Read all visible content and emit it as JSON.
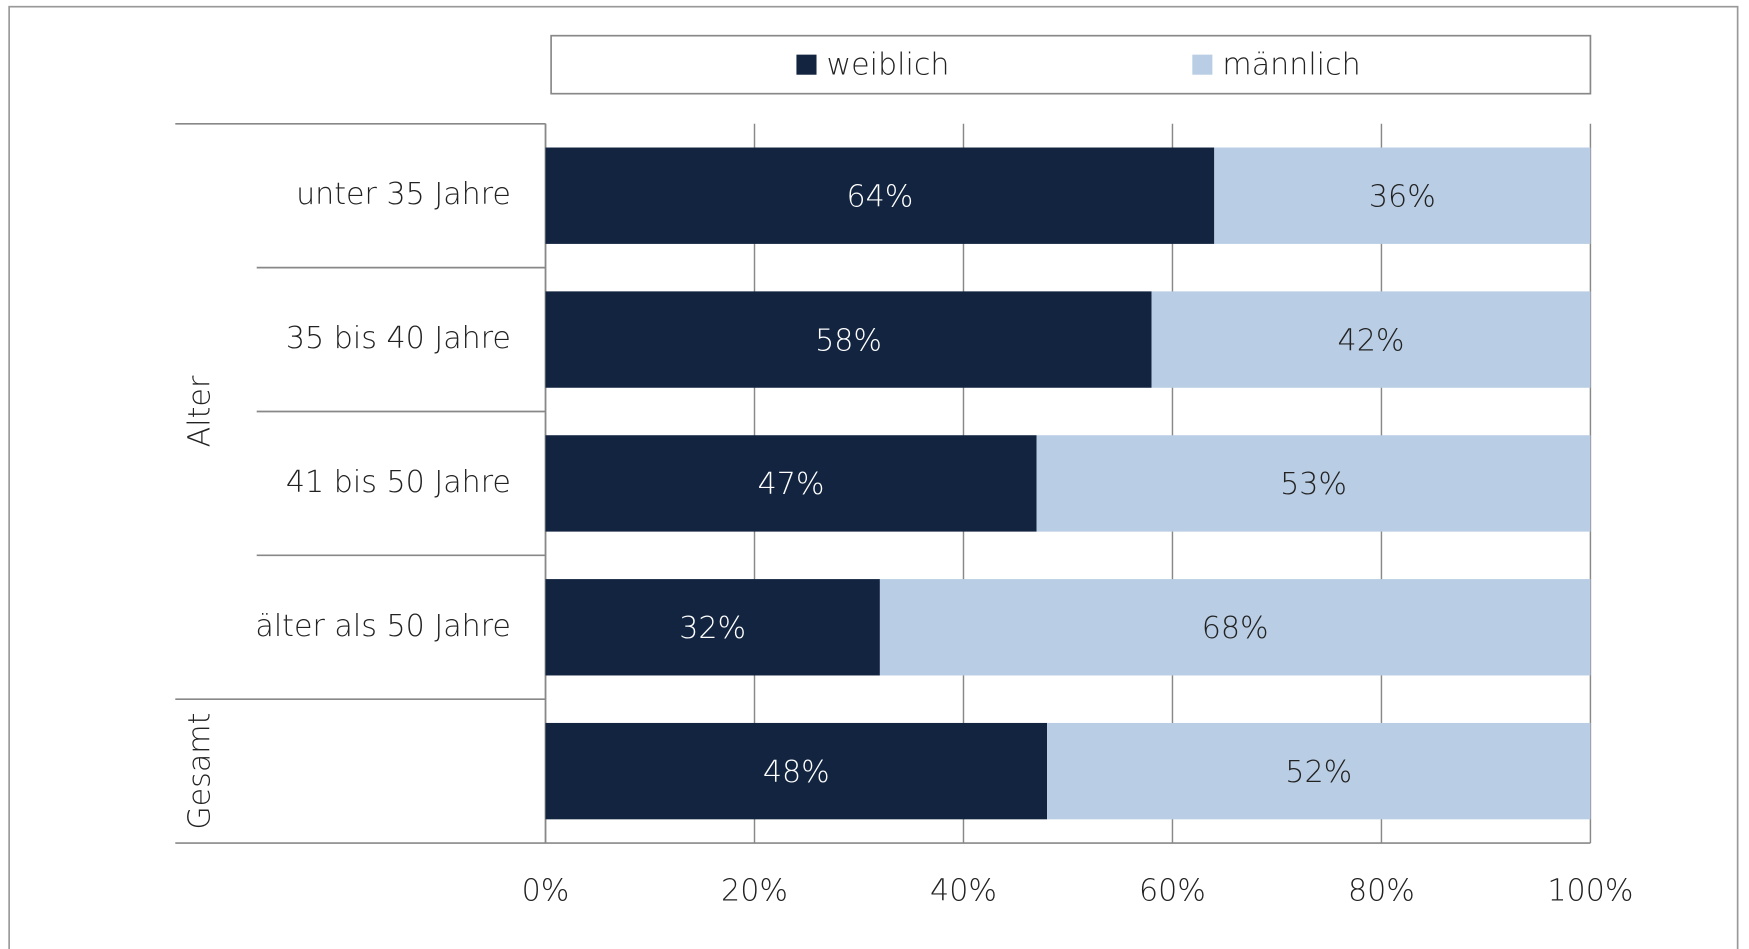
{
  "chart_data": {
    "type": "stacked_barh",
    "categories": [
      "unter 35 Jahre",
      "35 bis 40 Jahre",
      "41 bis 50 Jahre",
      "älter als 50 Jahre",
      null
    ],
    "groups": [
      {
        "name": "Alter",
        "count": 4
      },
      {
        "name": "Gesamt",
        "count": 1
      }
    ],
    "series": [
      {
        "name": "weiblich",
        "color": "#12243f",
        "label_color": "#ffffff",
        "values": [
          64,
          58,
          47,
          32,
          48
        ],
        "value_labels": [
          "64%",
          "58%",
          "47%",
          "32%",
          "48%"
        ]
      },
      {
        "name": "männlich",
        "color": "#b9cde4",
        "label_color": "#222222",
        "values": [
          36,
          42,
          53,
          68,
          52
        ],
        "value_labels": [
          "36%",
          "42%",
          "53%",
          "68%",
          "52%"
        ]
      }
    ],
    "xlim": [
      0,
      100
    ],
    "xticks": [
      {
        "value": 0,
        "label": "0%"
      },
      {
        "value": 20,
        "label": "20%"
      },
      {
        "value": 40,
        "label": "40%"
      },
      {
        "value": 60,
        "label": "60%"
      },
      {
        "value": 80,
        "label": "80%"
      },
      {
        "value": 100,
        "label": "100%"
      }
    ],
    "grid": true,
    "legend": "top"
  }
}
